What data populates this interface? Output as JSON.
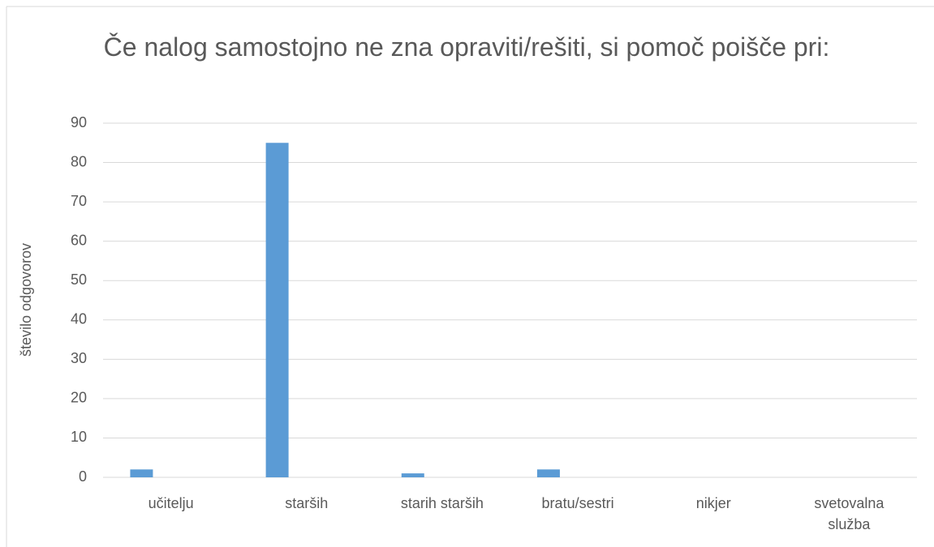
{
  "chart_data": {
    "type": "bar",
    "title": "Če nalog samostojno ne zna opraviti/rešiti, si pomoč poišče pri:",
    "y_label": "število odgovorov",
    "categories": [
      "učitelju",
      "starših",
      "starih starših",
      "bratu/sestri",
      "nikjer",
      "svetovalna služba"
    ],
    "values": [
      2,
      85,
      1,
      2,
      0,
      0
    ],
    "color": "#5b9bd5",
    "ylim": [
      0,
      90
    ],
    "yticks": [
      0,
      10,
      20,
      30,
      40,
      50,
      60,
      70,
      80,
      90
    ],
    "grid": true
  }
}
